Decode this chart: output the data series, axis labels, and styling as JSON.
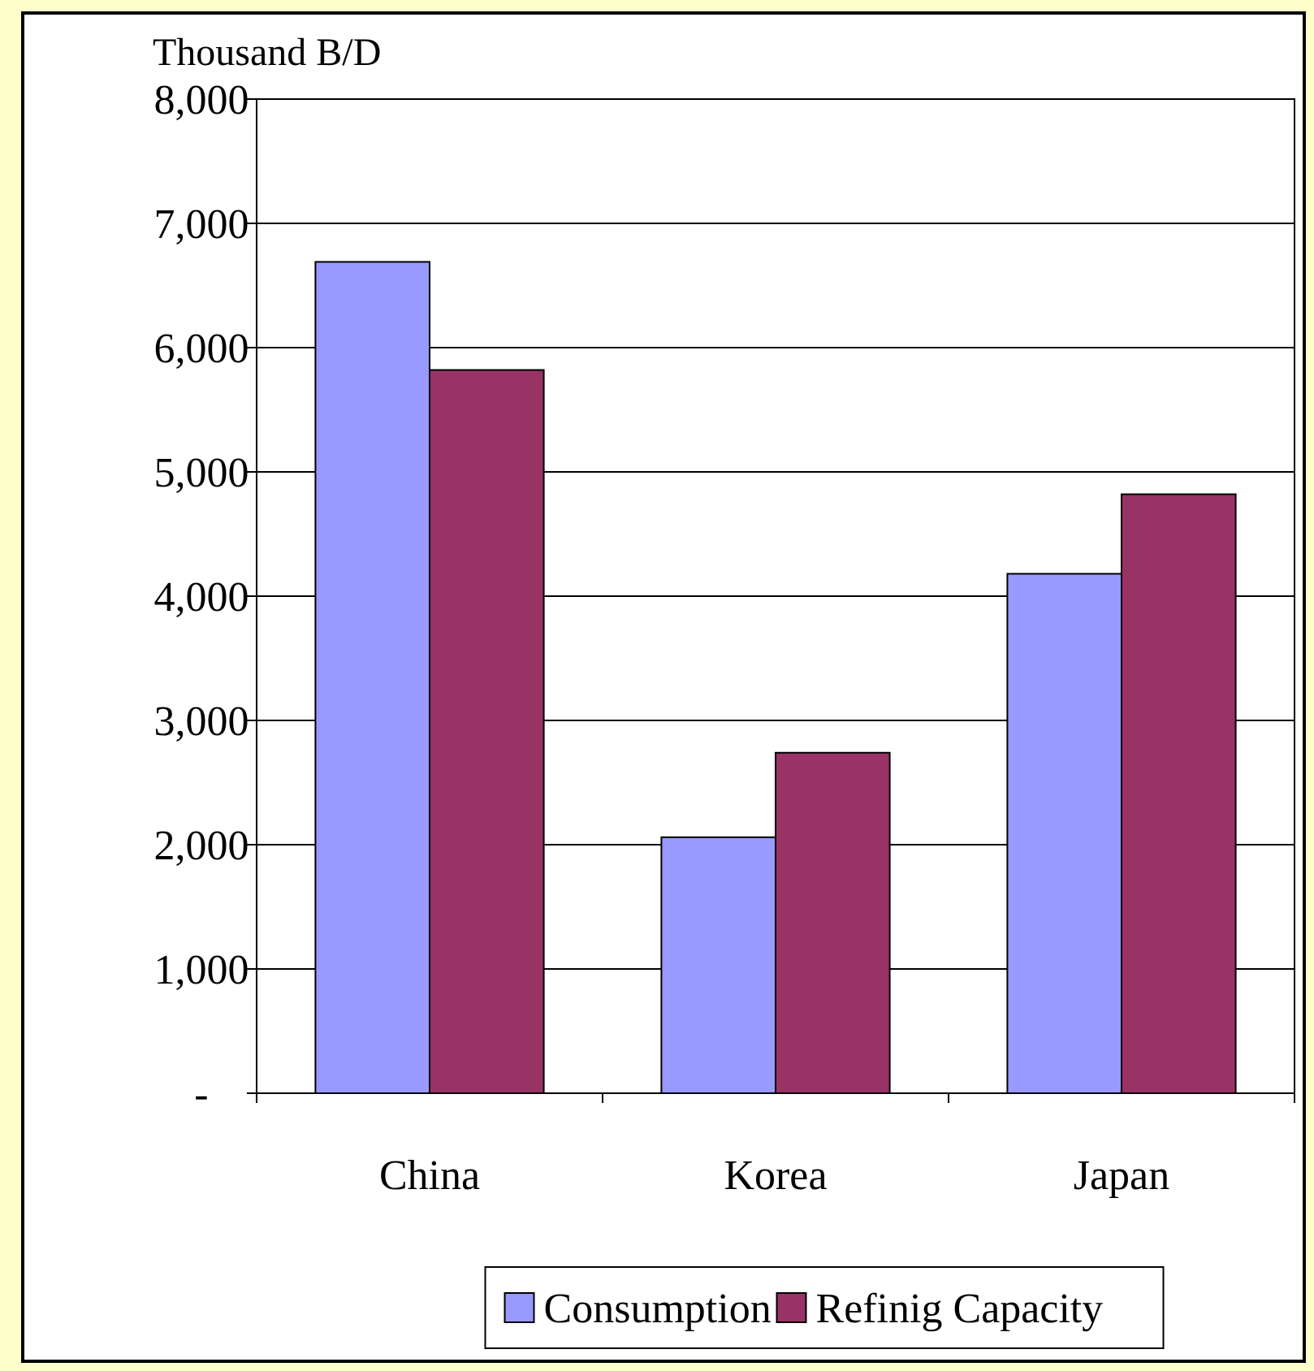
{
  "chart_data": {
    "type": "bar",
    "ylabel": "Thousand B/D",
    "categories": [
      "China",
      "Korea",
      "Japan"
    ],
    "series": [
      {
        "name": "Consumption",
        "color": "#9999ff",
        "values": [
          6690,
          2060,
          4180
        ]
      },
      {
        "name": "Refinig Capacity",
        "color": "#993366",
        "values": [
          5820,
          2740,
          4820
        ]
      }
    ],
    "ylim": [
      0,
      8000
    ],
    "yticks": [
      {
        "value": 0,
        "label": "-"
      },
      {
        "value": 1000,
        "label": "1,000"
      },
      {
        "value": 2000,
        "label": "2,000"
      },
      {
        "value": 3000,
        "label": "3,000"
      },
      {
        "value": 4000,
        "label": "4,000"
      },
      {
        "value": 5000,
        "label": "5,000"
      },
      {
        "value": 6000,
        "label": "6,000"
      },
      {
        "value": 7000,
        "label": "7,000"
      },
      {
        "value": 8000,
        "label": "8,000"
      }
    ],
    "grid": "y",
    "legend": "bottom"
  }
}
